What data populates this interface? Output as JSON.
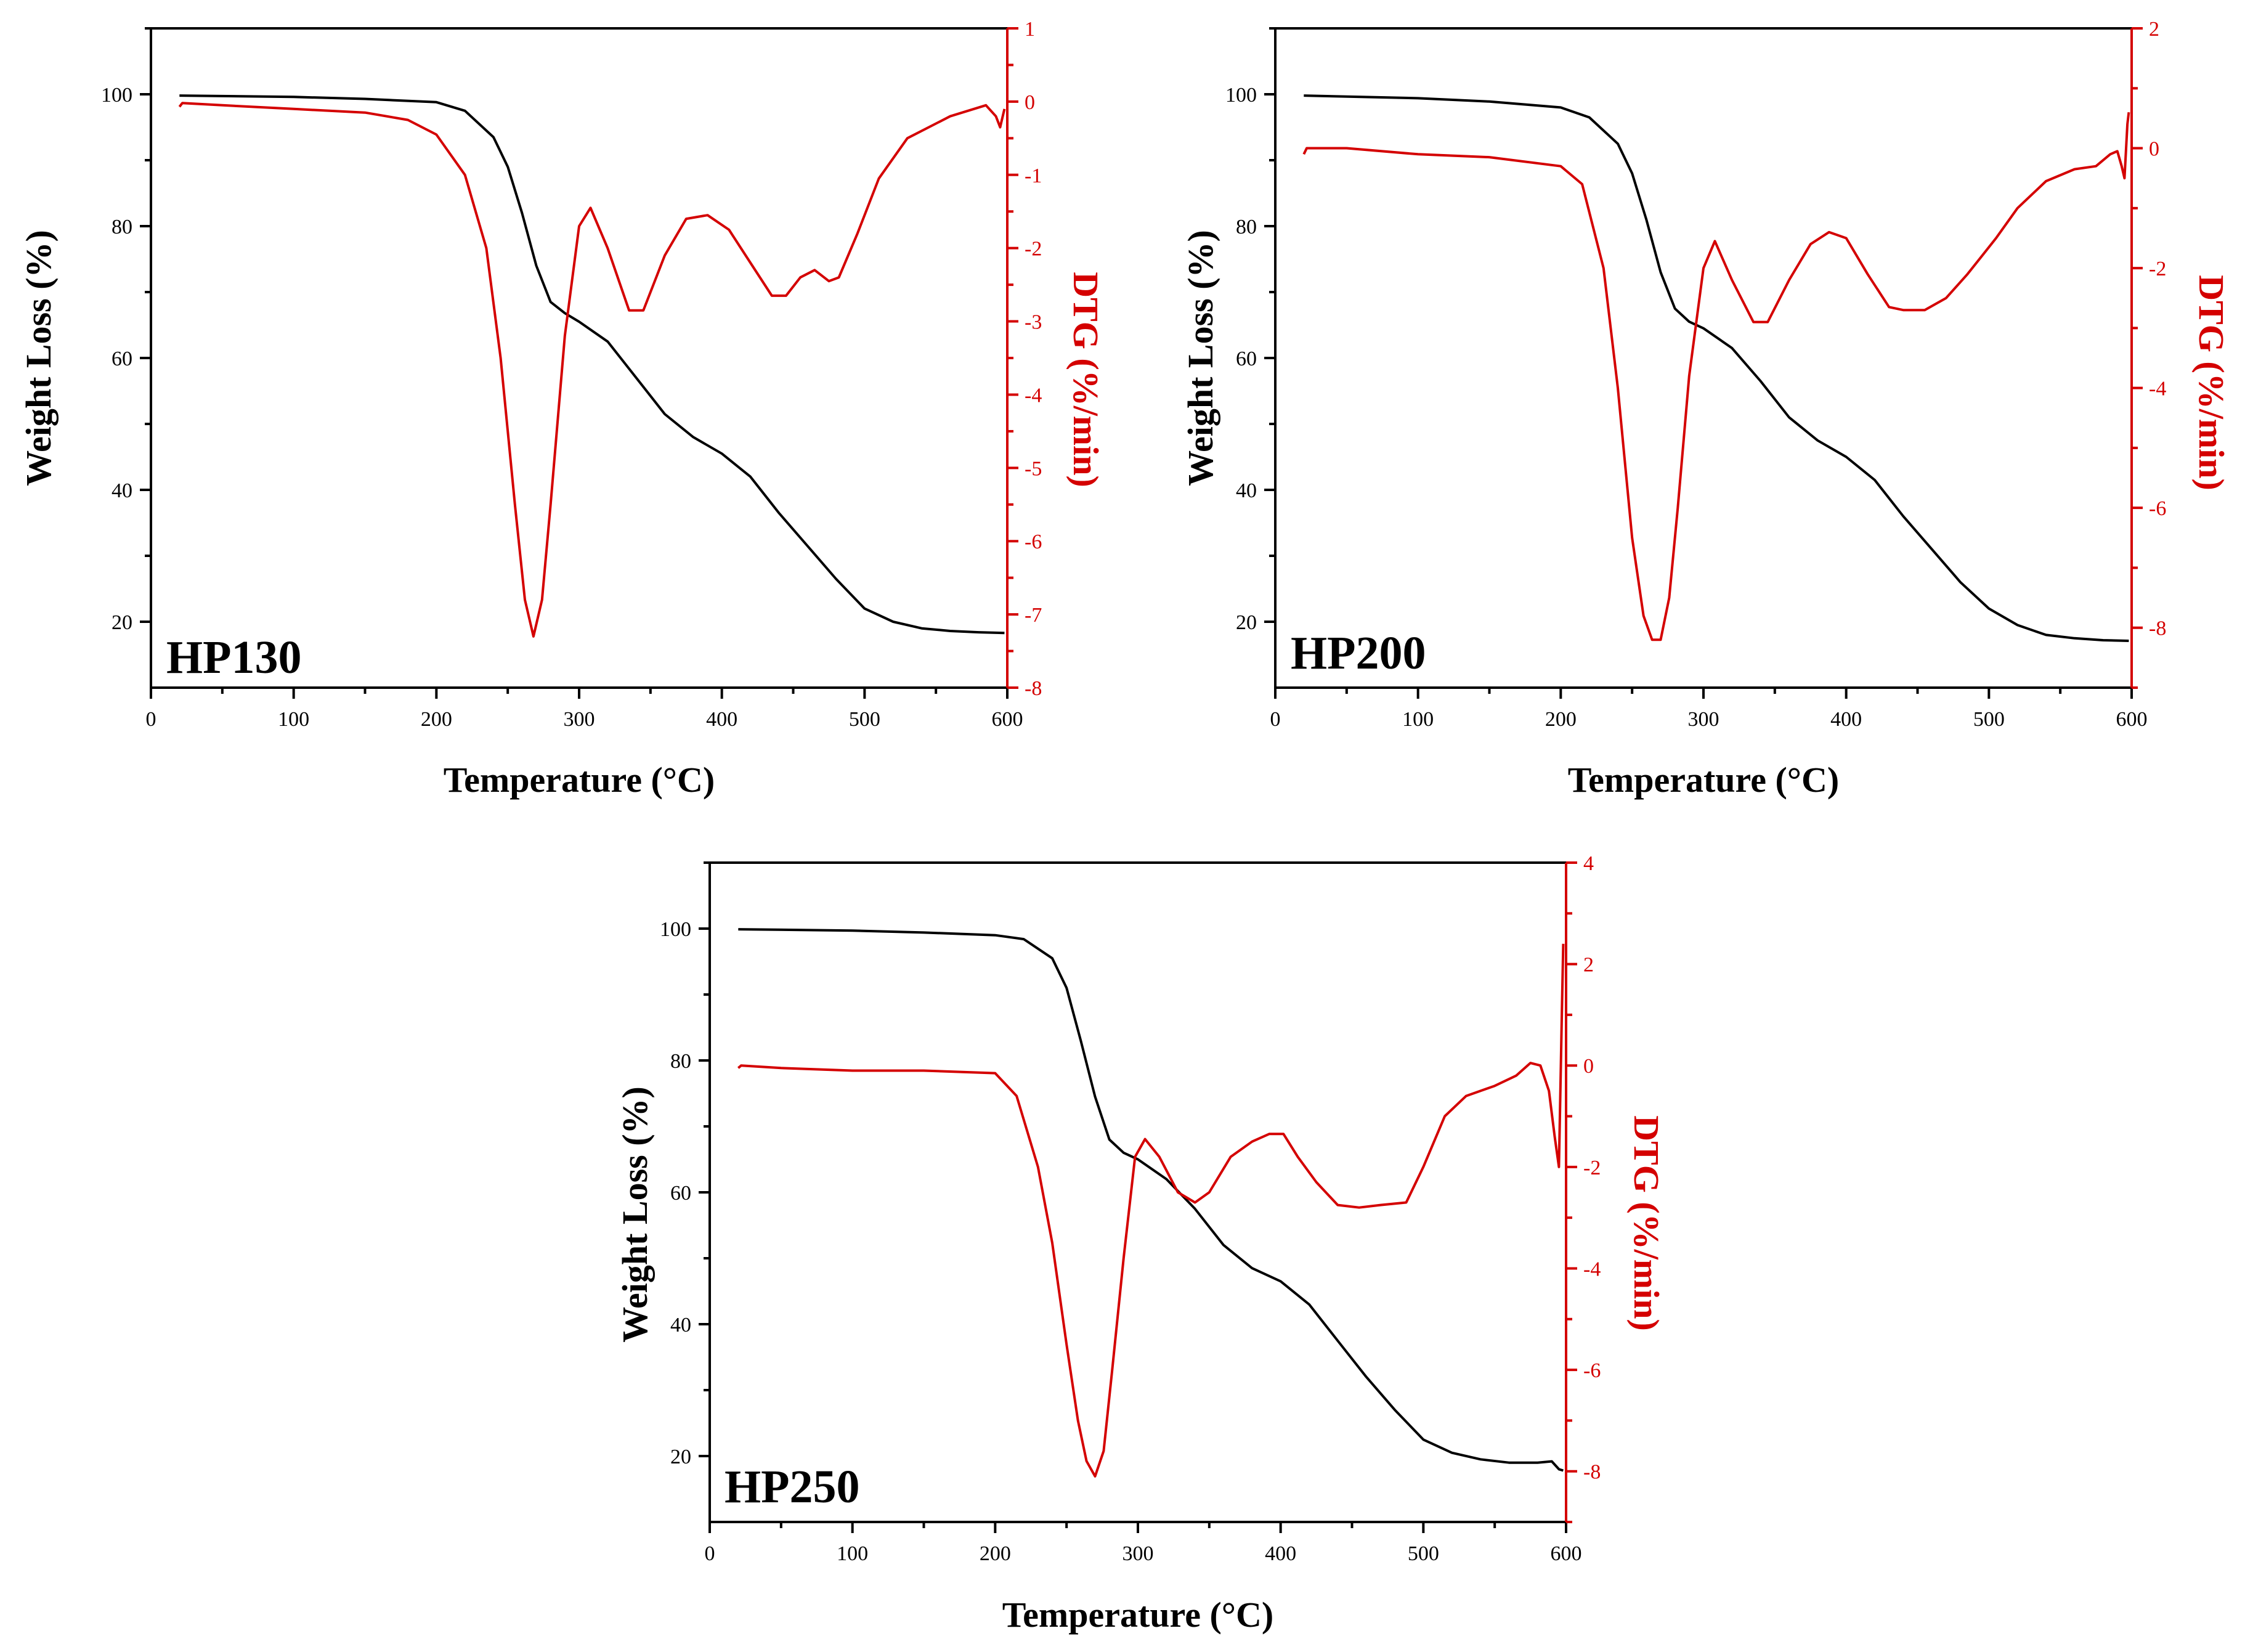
{
  "chart_data": [
    {
      "type": "line",
      "label": "HP130",
      "xlabel": "Temperature (°C)",
      "ylabel": "Weight Loss (%)",
      "y2label": "DTG (%/min)",
      "xlim": [
        0,
        600
      ],
      "ylim": [
        10,
        110
      ],
      "y2lim": [
        -8,
        1
      ],
      "xticks": [
        0,
        100,
        200,
        300,
        400,
        500,
        600
      ],
      "yticks": [
        20,
        40,
        60,
        80,
        100
      ],
      "y2ticks": [
        -8,
        -7,
        -6,
        -5,
        -4,
        -3,
        -2,
        -1,
        0,
        1
      ],
      "series": [
        {
          "name": "Weight Loss",
          "axis": "left",
          "color": "#000000",
          "x": [
            20,
            100,
            150,
            200,
            220,
            240,
            250,
            260,
            270,
            280,
            290,
            300,
            320,
            340,
            360,
            380,
            400,
            420,
            440,
            460,
            480,
            500,
            520,
            540,
            560,
            580,
            598
          ],
          "y": [
            99.8,
            99.6,
            99.3,
            98.8,
            97.5,
            93.5,
            89,
            82,
            74,
            68.5,
            66.8,
            65.5,
            62.5,
            57,
            51.5,
            48,
            45.5,
            42,
            36.5,
            31.5,
            26.5,
            22,
            20,
            19,
            18.6,
            18.4,
            18.3
          ]
        },
        {
          "name": "DTG",
          "axis": "right",
          "color": "#d40000",
          "x": [
            20,
            22,
            50,
            100,
            150,
            180,
            200,
            220,
            235,
            245,
            255,
            262,
            268,
            274,
            280,
            290,
            300,
            308,
            320,
            335,
            345,
            360,
            375,
            390,
            405,
            420,
            435,
            445,
            455,
            465,
            475,
            482,
            495,
            510,
            530,
            560,
            585,
            592,
            595,
            598
          ],
          "y": [
            -0.07,
            -0.02,
            -0.05,
            -0.1,
            -0.15,
            -0.25,
            -0.45,
            -1.0,
            -2.0,
            -3.5,
            -5.5,
            -6.8,
            -7.3,
            -6.8,
            -5.5,
            -3.2,
            -1.7,
            -1.45,
            -2.0,
            -2.85,
            -2.85,
            -2.1,
            -1.6,
            -1.55,
            -1.75,
            -2.2,
            -2.65,
            -2.65,
            -2.4,
            -2.3,
            -2.45,
            -2.4,
            -1.8,
            -1.05,
            -0.5,
            -0.2,
            -0.05,
            -0.2,
            -0.35,
            -0.1
          ]
        }
      ]
    },
    {
      "type": "line",
      "label": "HP200",
      "xlabel": "Temperature (°C)",
      "ylabel": "Weight Loss (%)",
      "y2label": "DTG (%/min)",
      "xlim": [
        0,
        600
      ],
      "ylim": [
        10,
        110
      ],
      "y2lim": [
        -9,
        2
      ],
      "xticks": [
        0,
        100,
        200,
        300,
        400,
        500,
        600
      ],
      "yticks": [
        20,
        40,
        60,
        80,
        100
      ],
      "y2ticks": [
        -8,
        -6,
        -4,
        -2,
        0,
        2
      ],
      "series": [
        {
          "name": "Weight Loss",
          "axis": "left",
          "color": "#000000",
          "x": [
            20,
            100,
            150,
            200,
            220,
            240,
            250,
            260,
            270,
            280,
            290,
            300,
            320,
            340,
            360,
            380,
            400,
            420,
            440,
            460,
            480,
            500,
            520,
            540,
            560,
            580,
            598
          ],
          "y": [
            99.8,
            99.4,
            98.9,
            98,
            96.5,
            92.5,
            88,
            81,
            73,
            67.5,
            65.5,
            64.5,
            61.5,
            56.5,
            51,
            47.5,
            45,
            41.5,
            36,
            31,
            26,
            22,
            19.5,
            18,
            17.5,
            17.2,
            17.1
          ]
        },
        {
          "name": "DTG",
          "axis": "right",
          "color": "#d40000",
          "x": [
            20,
            22,
            50,
            100,
            150,
            200,
            215,
            230,
            240,
            250,
            258,
            264,
            270,
            276,
            282,
            290,
            300,
            308,
            320,
            335,
            345,
            360,
            375,
            388,
            400,
            415,
            430,
            440,
            455,
            470,
            485,
            495,
            505,
            520,
            540,
            560,
            575,
            585,
            590,
            593,
            595,
            597,
            598
          ],
          "y": [
            -0.1,
            0.0,
            0.0,
            -0.1,
            -0.15,
            -0.3,
            -0.6,
            -2.0,
            -4.0,
            -6.5,
            -7.8,
            -8.2,
            -8.2,
            -7.5,
            -6.0,
            -3.8,
            -2.0,
            -1.55,
            -2.2,
            -2.9,
            -2.9,
            -2.2,
            -1.6,
            -1.4,
            -1.5,
            -2.1,
            -2.65,
            -2.7,
            -2.7,
            -2.5,
            -2.1,
            -1.8,
            -1.5,
            -1.0,
            -0.55,
            -0.35,
            -0.3,
            -0.1,
            -0.05,
            -0.3,
            -0.5,
            0.4,
            0.6
          ]
        }
      ]
    },
    {
      "type": "line",
      "label": "HP250",
      "xlabel": "Temperature (°C)",
      "ylabel": "Weight Loss (%)",
      "y2label": "DTG (%/min)",
      "xlim": [
        0,
        600
      ],
      "ylim": [
        10,
        110
      ],
      "y2lim": [
        -9,
        4
      ],
      "xticks": [
        0,
        100,
        200,
        300,
        400,
        500,
        600
      ],
      "yticks": [
        20,
        40,
        60,
        80,
        100
      ],
      "y2ticks": [
        -8,
        -6,
        -4,
        -2,
        0,
        2,
        4
      ],
      "series": [
        {
          "name": "Weight Loss",
          "axis": "left",
          "color": "#000000",
          "x": [
            20,
            100,
            150,
            200,
            220,
            240,
            250,
            260,
            270,
            280,
            290,
            300,
            320,
            340,
            360,
            380,
            400,
            420,
            440,
            460,
            480,
            500,
            520,
            540,
            560,
            580,
            590,
            595,
            598
          ],
          "y": [
            99.9,
            99.7,
            99.4,
            99,
            98.4,
            95.5,
            91,
            83,
            74.5,
            68,
            66,
            65,
            62,
            57.5,
            52,
            48.5,
            46.5,
            43,
            37.5,
            32,
            27,
            22.5,
            20.5,
            19.5,
            19,
            19,
            19.2,
            18,
            17.8
          ]
        },
        {
          "name": "DTG",
          "axis": "right",
          "color": "#d40000",
          "x": [
            20,
            22,
            50,
            100,
            150,
            200,
            215,
            230,
            240,
            250,
            258,
            264,
            270,
            276,
            282,
            290,
            298,
            305,
            315,
            328,
            340,
            350,
            365,
            380,
            392,
            402,
            412,
            425,
            440,
            455,
            470,
            488,
            500,
            515,
            530,
            550,
            565,
            575,
            582,
            588,
            592,
            595,
            597,
            598
          ],
          "y": [
            -0.05,
            0.0,
            -0.05,
            -0.1,
            -0.1,
            -0.15,
            -0.6,
            -2.0,
            -3.5,
            -5.5,
            -7.0,
            -7.8,
            -8.1,
            -7.6,
            -6.0,
            -3.8,
            -1.8,
            -1.45,
            -1.8,
            -2.5,
            -2.7,
            -2.5,
            -1.8,
            -1.5,
            -1.35,
            -1.35,
            -1.8,
            -2.3,
            -2.75,
            -2.8,
            -2.75,
            -2.7,
            -2.0,
            -1.0,
            -0.6,
            -0.4,
            -0.2,
            0.05,
            0.0,
            -0.5,
            -1.4,
            -2.0,
            1.0,
            2.4
          ]
        }
      ]
    }
  ]
}
